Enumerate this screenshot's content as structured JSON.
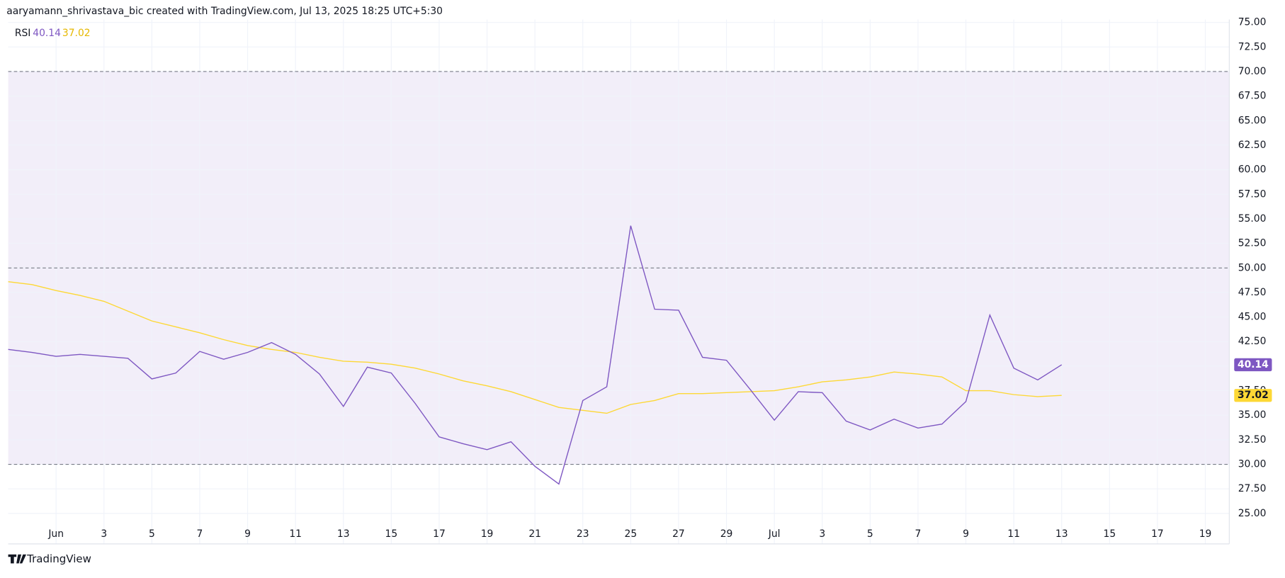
{
  "header": "aaryamann_shrivastava_bic created with TradingView.com, Jul 13, 2025 18:25 UTC+5:30",
  "footer": "TradingView",
  "chart_data": {
    "type": "line",
    "indicator": "RSI",
    "x": [
      "2025-05-30",
      "2025-05-31",
      "2025-06-01",
      "2025-06-02",
      "2025-06-03",
      "2025-06-04",
      "2025-06-05",
      "2025-06-06",
      "2025-06-07",
      "2025-06-08",
      "2025-06-09",
      "2025-06-10",
      "2025-06-11",
      "2025-06-12",
      "2025-06-13",
      "2025-06-14",
      "2025-06-15",
      "2025-06-16",
      "2025-06-17",
      "2025-06-18",
      "2025-06-19",
      "2025-06-20",
      "2025-06-21",
      "2025-06-22",
      "2025-06-23",
      "2025-06-24",
      "2025-06-25",
      "2025-06-26",
      "2025-06-27",
      "2025-06-28",
      "2025-06-29",
      "2025-06-30",
      "2025-07-01",
      "2025-07-02",
      "2025-07-03",
      "2025-07-04",
      "2025-07-05",
      "2025-07-06",
      "2025-07-07",
      "2025-07-08",
      "2025-07-09",
      "2025-07-10",
      "2025-07-11",
      "2025-07-12",
      "2025-07-13"
    ],
    "series": [
      {
        "color": "#7e57c2",
        "values": [
          41.7,
          41.4,
          41.0,
          41.2,
          41.0,
          40.8,
          38.7,
          39.3,
          41.5,
          40.7,
          41.4,
          42.4,
          41.2,
          39.2,
          35.9,
          39.9,
          39.3,
          36.2,
          32.8,
          32.1,
          31.5,
          32.3,
          29.8,
          28.0,
          36.5,
          37.9,
          54.3,
          45.8,
          45.7,
          40.9,
          40.6,
          37.6,
          34.5,
          37.4,
          37.3,
          34.4,
          33.5,
          34.6,
          33.7,
          34.1,
          36.4,
          45.2,
          39.8,
          38.6,
          40.14
        ]
      },
      {
        "color": "#fdd835",
        "values": [
          48.6,
          48.3,
          47.7,
          47.2,
          46.6,
          45.6,
          44.6,
          44.0,
          43.4,
          42.7,
          42.1,
          41.7,
          41.4,
          40.9,
          40.5,
          40.4,
          40.2,
          39.8,
          39.2,
          38.5,
          38.0,
          37.4,
          36.6,
          35.8,
          35.5,
          35.2,
          36.1,
          36.5,
          37.2,
          37.2,
          37.3,
          37.4,
          37.5,
          37.9,
          38.4,
          38.6,
          38.9,
          39.4,
          39.2,
          38.9,
          37.5,
          37.5,
          37.1,
          36.9,
          37.02
        ]
      }
    ],
    "band": [
      30,
      70
    ],
    "levels": [
      30,
      50,
      70
    ],
    "xlim": [
      "2025-05-30",
      "2025-07-20"
    ],
    "xticks": [
      {
        "value": "2025-06-01",
        "label": "Jun"
      },
      {
        "value": "2025-06-03",
        "label": "3"
      },
      {
        "value": "2025-06-05",
        "label": "5"
      },
      {
        "value": "2025-06-07",
        "label": "7"
      },
      {
        "value": "2025-06-09",
        "label": "9"
      },
      {
        "value": "2025-06-11",
        "label": "11"
      },
      {
        "value": "2025-06-13",
        "label": "13"
      },
      {
        "value": "2025-06-15",
        "label": "15"
      },
      {
        "value": "2025-06-17",
        "label": "17"
      },
      {
        "value": "2025-06-19",
        "label": "19"
      },
      {
        "value": "2025-06-21",
        "label": "21"
      },
      {
        "value": "2025-06-23",
        "label": "23"
      },
      {
        "value": "2025-06-25",
        "label": "25"
      },
      {
        "value": "2025-06-27",
        "label": "27"
      },
      {
        "value": "2025-06-29",
        "label": "29"
      },
      {
        "value": "2025-07-01",
        "label": "Jul"
      },
      {
        "value": "2025-07-03",
        "label": "3"
      },
      {
        "value": "2025-07-05",
        "label": "5"
      },
      {
        "value": "2025-07-07",
        "label": "7"
      },
      {
        "value": "2025-07-09",
        "label": "9"
      },
      {
        "value": "2025-07-11",
        "label": "11"
      },
      {
        "value": "2025-07-13",
        "label": "13"
      },
      {
        "value": "2025-07-15",
        "label": "15"
      },
      {
        "value": "2025-07-17",
        "label": "17"
      },
      {
        "value": "2025-07-19",
        "label": "19"
      }
    ],
    "ylim": [
      21.9,
      75.3
    ],
    "yticks": [
      {
        "value": 25,
        "label": "25.00"
      },
      {
        "value": 27.5,
        "label": "27.50"
      },
      {
        "value": 30,
        "label": "30.00"
      },
      {
        "value": 32.5,
        "label": "32.50"
      },
      {
        "value": 35,
        "label": "35.00"
      },
      {
        "value": 37.5,
        "label": "37.50"
      },
      {
        "value": 40,
        "label": "40.00"
      },
      {
        "value": 42.5,
        "label": "42.50"
      },
      {
        "value": 45,
        "label": "45.00"
      },
      {
        "value": 47.5,
        "label": "47.50"
      },
      {
        "value": 50,
        "label": "50.00"
      },
      {
        "value": 52.5,
        "label": "52.50"
      },
      {
        "value": 55,
        "label": "55.00"
      },
      {
        "value": 57.5,
        "label": "57.50"
      },
      {
        "value": 60,
        "label": "60.00"
      },
      {
        "value": 62.5,
        "label": "62.50"
      },
      {
        "value": 65,
        "label": "65.00"
      },
      {
        "value": 67.5,
        "label": "67.50"
      },
      {
        "value": 70,
        "label": "70.00"
      },
      {
        "value": 72.5,
        "label": "72.50"
      },
      {
        "value": 75,
        "label": "75.00"
      }
    ],
    "grid": true
  }
}
